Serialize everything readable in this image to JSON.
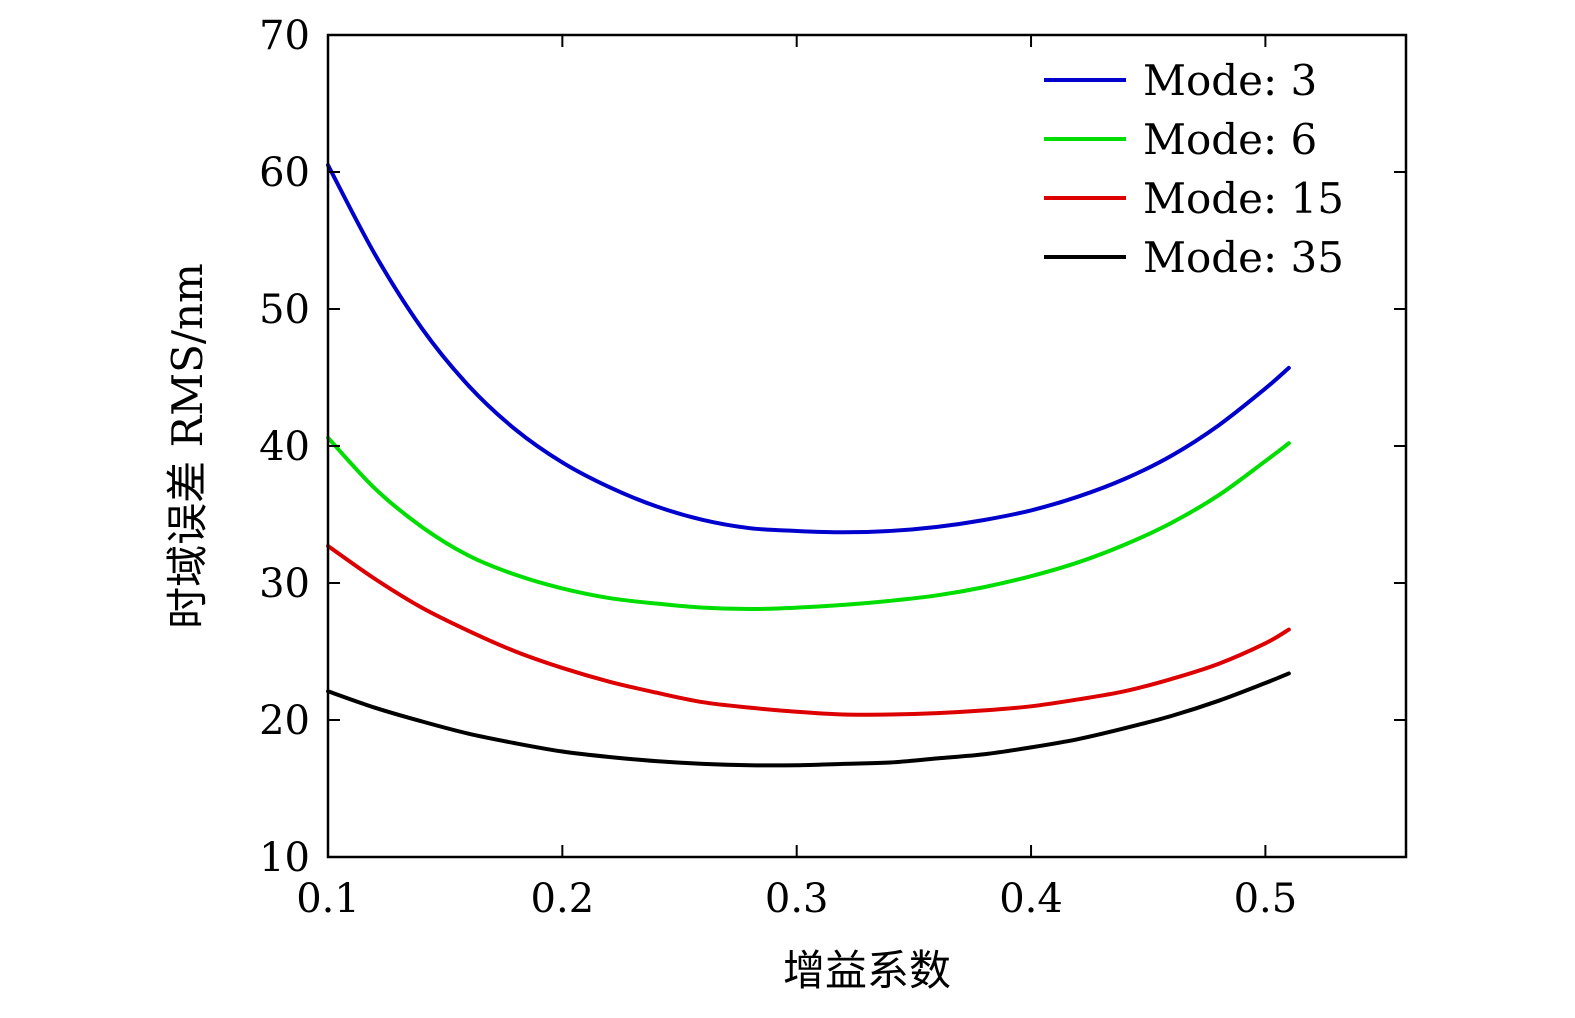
{
  "chart_data": {
    "type": "line",
    "title": "",
    "xlabel": "增益系数",
    "ylabel": "时域误差 RMS/nm",
    "xlim": [
      0.1,
      0.56
    ],
    "ylim": [
      10,
      70
    ],
    "xticks": [
      0.1,
      0.2,
      0.3,
      0.4,
      0.5
    ],
    "xtick_labels": [
      "0.1",
      "0.2",
      "0.3",
      "0.4",
      "0.5"
    ],
    "yticks": [
      10,
      20,
      30,
      40,
      50,
      60,
      70
    ],
    "ytick_labels": [
      "10",
      "20",
      "30",
      "40",
      "50",
      "60",
      "70"
    ],
    "grid": false,
    "legend_position": "top-right",
    "x": [
      0.1,
      0.12,
      0.14,
      0.16,
      0.18,
      0.2,
      0.22,
      0.24,
      0.26,
      0.28,
      0.3,
      0.32,
      0.34,
      0.36,
      0.38,
      0.4,
      0.42,
      0.44,
      0.46,
      0.48,
      0.5,
      0.51
    ],
    "series": [
      {
        "name": "Mode: 3",
        "color": "#0000cc",
        "values": [
          60.5,
          54.0,
          48.6,
          44.4,
          41.2,
          38.8,
          37.0,
          35.6,
          34.6,
          34.0,
          33.8,
          33.7,
          33.8,
          34.1,
          34.6,
          35.3,
          36.3,
          37.6,
          39.3,
          41.5,
          44.2,
          45.7
        ]
      },
      {
        "name": "Mode: 6",
        "color": "#00dd00",
        "values": [
          40.6,
          36.9,
          34.1,
          32.0,
          30.6,
          29.6,
          28.9,
          28.5,
          28.2,
          28.1,
          28.2,
          28.4,
          28.7,
          29.1,
          29.7,
          30.5,
          31.5,
          32.8,
          34.4,
          36.4,
          38.9,
          40.2
        ]
      },
      {
        "name": "Mode: 15",
        "color": "#dd0000",
        "values": [
          32.7,
          30.3,
          28.2,
          26.5,
          25.0,
          23.8,
          22.8,
          22.0,
          21.3,
          20.9,
          20.6,
          20.4,
          20.4,
          20.5,
          20.7,
          21.0,
          21.5,
          22.1,
          23.0,
          24.1,
          25.6,
          26.6
        ]
      },
      {
        "name": "Mode: 35",
        "color": "#000000",
        "values": [
          22.1,
          20.9,
          19.9,
          19.0,
          18.3,
          17.7,
          17.3,
          17.0,
          16.8,
          16.7,
          16.7,
          16.8,
          16.9,
          17.2,
          17.5,
          18.0,
          18.6,
          19.4,
          20.3,
          21.4,
          22.7,
          23.4
        ]
      }
    ]
  }
}
